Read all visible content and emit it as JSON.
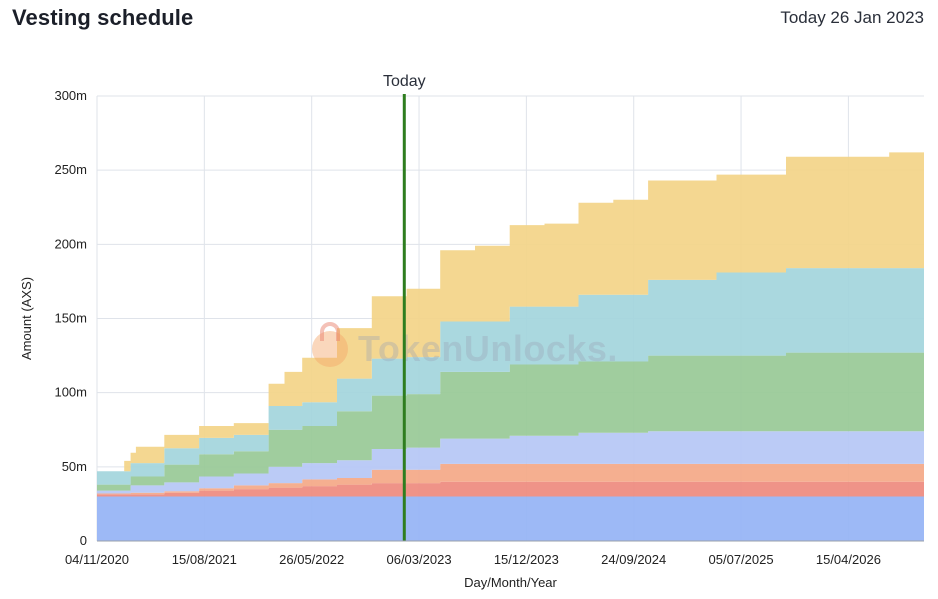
{
  "header": {
    "title": "Vesting schedule",
    "today_text": "Today 26 Jan 2023"
  },
  "watermark": "TokenUnlocks.",
  "chart_data": {
    "type": "area",
    "stacked": true,
    "step": true,
    "ylabel": "Amount (AXS)",
    "xlabel": "Day/Month/Year",
    "ylim": [
      0,
      300000000
    ],
    "y_ticks": [
      0,
      50000000,
      100000000,
      150000000,
      200000000,
      250000000,
      300000000
    ],
    "y_tick_labels": [
      "0",
      "50m",
      "100m",
      "150m",
      "200m",
      "250m",
      "300m"
    ],
    "x_range": [
      "2020-11-04",
      "2026-11-01"
    ],
    "x_ticks": [
      "2020-11-04",
      "2021-08-15",
      "2022-05-26",
      "2023-03-06",
      "2023-12-15",
      "2024-09-24",
      "2025-07-05",
      "2026-04-15"
    ],
    "x_tick_labels": [
      "04/11/2020",
      "15/08/2021",
      "26/05/2022",
      "06/03/2023",
      "15/12/2023",
      "24/09/2024",
      "05/07/2025",
      "15/04/2026"
    ],
    "today_marker": {
      "label": "Today",
      "date": "2023-01-26",
      "color": "#2e7d1f"
    },
    "grid": true,
    "legend": "none",
    "series": [
      {
        "color": "#95b3f5",
        "points": [
          [
            "2020-11-04",
            30000000
          ],
          [
            "2026-11-01",
            30000000
          ]
        ]
      },
      {
        "color": "#ee8a7e",
        "points": [
          [
            "2020-11-04",
            1500000
          ],
          [
            "2021-05-01",
            2500000
          ],
          [
            "2021-08-01",
            4000000
          ],
          [
            "2021-11-01",
            5000000
          ],
          [
            "2022-02-01",
            6000000
          ],
          [
            "2022-05-01",
            7000000
          ],
          [
            "2022-08-01",
            8000000
          ],
          [
            "2022-11-01",
            9000000
          ],
          [
            "2023-05-01",
            10000000
          ],
          [
            "2026-11-01",
            10000000
          ]
        ]
      },
      {
        "color": "#f4a887",
        "points": [
          [
            "2020-11-04",
            500000
          ],
          [
            "2021-02-01",
            1000000
          ],
          [
            "2021-08-01",
            1500000
          ],
          [
            "2021-11-01",
            2500000
          ],
          [
            "2022-02-01",
            3000000
          ],
          [
            "2022-05-01",
            4500000
          ],
          [
            "2022-11-01",
            9000000
          ],
          [
            "2023-05-01",
            12000000
          ],
          [
            "2026-11-01",
            12000000
          ]
        ]
      },
      {
        "color": "#b5c7f5",
        "points": [
          [
            "2020-11-04",
            2000000
          ],
          [
            "2021-02-01",
            5000000
          ],
          [
            "2021-05-01",
            6000000
          ],
          [
            "2021-08-01",
            8000000
          ],
          [
            "2022-02-01",
            11000000
          ],
          [
            "2022-08-01",
            12000000
          ],
          [
            "2022-11-01",
            14000000
          ],
          [
            "2023-02-01",
            15000000
          ],
          [
            "2023-05-01",
            17000000
          ],
          [
            "2023-11-01",
            19000000
          ],
          [
            "2024-05-01",
            21000000
          ],
          [
            "2024-11-01",
            22000000
          ],
          [
            "2026-11-01",
            22000000
          ]
        ]
      },
      {
        "color": "#98c996",
        "points": [
          [
            "2020-11-04",
            4000000
          ],
          [
            "2021-02-01",
            6000000
          ],
          [
            "2021-05-01",
            12000000
          ],
          [
            "2021-08-01",
            15000000
          ],
          [
            "2022-02-01",
            25000000
          ],
          [
            "2022-08-01",
            33000000
          ],
          [
            "2022-11-01",
            36000000
          ],
          [
            "2023-05-01",
            45000000
          ],
          [
            "2023-11-01",
            48000000
          ],
          [
            "2024-05-01",
            48000000
          ],
          [
            "2024-11-01",
            51000000
          ],
          [
            "2025-05-01",
            51000000
          ],
          [
            "2025-11-01",
            53000000
          ],
          [
            "2026-11-01",
            53000000
          ]
        ]
      },
      {
        "color": "#a3d5dc",
        "points": [
          [
            "2020-11-04",
            9000000
          ],
          [
            "2021-05-01",
            11000000
          ],
          [
            "2021-08-01",
            11000000
          ],
          [
            "2022-02-01",
            16000000
          ],
          [
            "2022-08-01",
            22000000
          ],
          [
            "2022-11-01",
            25000000
          ],
          [
            "2023-05-01",
            34000000
          ],
          [
            "2023-11-01",
            39000000
          ],
          [
            "2024-05-01",
            45000000
          ],
          [
            "2024-11-01",
            51000000
          ],
          [
            "2025-05-01",
            56000000
          ],
          [
            "2025-11-01",
            57000000
          ],
          [
            "2026-11-01",
            57000000
          ]
        ]
      },
      {
        "color": "#f3d488",
        "points": [
          [
            "2020-11-04",
            0
          ],
          [
            "2021-01-15",
            7000000
          ],
          [
            "2021-02-15",
            11000000
          ],
          [
            "2021-05-01",
            9000000
          ],
          [
            "2021-08-01",
            8000000
          ],
          [
            "2022-02-01",
            15000000
          ],
          [
            "2022-03-15",
            23000000
          ],
          [
            "2022-05-01",
            30000000
          ],
          [
            "2022-08-01",
            34000000
          ],
          [
            "2022-11-01",
            42000000
          ],
          [
            "2023-02-01",
            46000000
          ],
          [
            "2023-05-01",
            48000000
          ],
          [
            "2023-08-01",
            51000000
          ],
          [
            "2023-11-01",
            55000000
          ],
          [
            "2024-02-01",
            56000000
          ],
          [
            "2024-05-01",
            62000000
          ],
          [
            "2024-08-01",
            64000000
          ],
          [
            "2024-11-01",
            67000000
          ],
          [
            "2025-05-01",
            66000000
          ],
          [
            "2025-11-01",
            75000000
          ],
          [
            "2026-05-01",
            75000000
          ],
          [
            "2026-08-01",
            78000000
          ],
          [
            "2026-11-01",
            78000000
          ]
        ]
      }
    ]
  }
}
